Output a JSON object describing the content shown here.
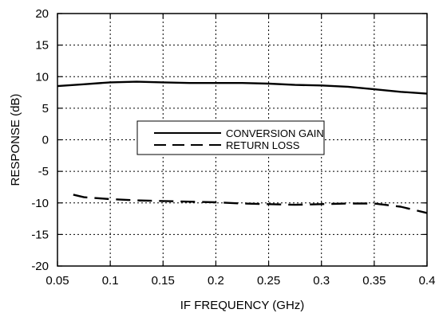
{
  "chart_data": {
    "type": "line",
    "title": "",
    "xlabel": "IF FREQUENCY (GHz)",
    "ylabel": "RESPONSE (dB)",
    "xlim": [
      0.05,
      0.4
    ],
    "ylim": [
      -20,
      20
    ],
    "x_ticks": [
      "0.05",
      "0.1",
      "0.15",
      "0.2",
      "0.25",
      "0.3",
      "0.35",
      "0.4"
    ],
    "y_ticks": [
      "20",
      "15",
      "10",
      "5",
      "0",
      "-5",
      "-10",
      "-15",
      "-20"
    ],
    "grid": true,
    "legend_position": "center",
    "series": [
      {
        "name": "CONVERSION GAIN",
        "style": "solid",
        "x": [
          0.05,
          0.075,
          0.1,
          0.125,
          0.15,
          0.175,
          0.2,
          0.225,
          0.25,
          0.275,
          0.3,
          0.325,
          0.35,
          0.375,
          0.4
        ],
        "y": [
          8.5,
          8.8,
          9.1,
          9.2,
          9.1,
          9.0,
          9.0,
          9.0,
          8.9,
          8.7,
          8.6,
          8.4,
          8.0,
          7.6,
          7.3
        ]
      },
      {
        "name": "RETURN LOSS",
        "style": "dashed",
        "x": [
          0.065,
          0.075,
          0.1,
          0.125,
          0.15,
          0.175,
          0.2,
          0.225,
          0.25,
          0.275,
          0.3,
          0.325,
          0.35,
          0.375,
          0.4
        ],
        "y": [
          -8.7,
          -9.1,
          -9.4,
          -9.6,
          -9.7,
          -9.8,
          -9.9,
          -10.1,
          -10.2,
          -10.3,
          -10.2,
          -10.1,
          -10.1,
          -10.6,
          -11.6
        ]
      }
    ]
  }
}
